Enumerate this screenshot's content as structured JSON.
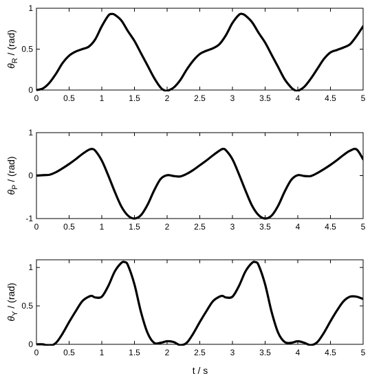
{
  "figure": {
    "xlabel": "t / s"
  },
  "chart_data": [
    {
      "type": "line",
      "ylabel_symbol": "θ",
      "ylabel_subscript": "R",
      "ylabel_unit": " / (rad)",
      "xlim": [
        0,
        5
      ],
      "ylim": [
        0,
        1
      ],
      "xticks": [
        "0",
        "0.5",
        "1",
        "1.5",
        "2",
        "2.5",
        "3",
        "3.5",
        "4",
        "4.5",
        "5"
      ],
      "yticks": [
        "0",
        "0.5",
        "1"
      ],
      "grid": false,
      "series": [
        {
          "color": "#000000",
          "x": [
            0,
            0.1,
            0.2,
            0.3,
            0.4,
            0.5,
            0.6,
            0.7,
            0.8,
            0.9,
            1.0,
            1.1,
            1.15,
            1.2,
            1.3,
            1.4,
            1.5,
            1.6,
            1.7,
            1.8,
            1.9,
            1.95,
            2.0,
            2.1,
            2.2,
            2.3,
            2.4,
            2.5,
            2.6,
            2.7,
            2.8,
            2.9,
            3.0,
            3.1,
            3.15,
            3.2,
            3.3,
            3.4,
            3.5,
            3.6,
            3.7,
            3.8,
            3.9,
            3.95,
            4.0,
            4.1,
            4.2,
            4.3,
            4.4,
            4.5,
            4.6,
            4.7,
            4.8,
            4.9,
            5.0
          ],
          "y": [
            0.0,
            0.02,
            0.09,
            0.2,
            0.33,
            0.42,
            0.47,
            0.5,
            0.53,
            0.62,
            0.78,
            0.91,
            0.93,
            0.92,
            0.85,
            0.72,
            0.6,
            0.45,
            0.3,
            0.15,
            0.03,
            0.0,
            -0.01,
            0.03,
            0.12,
            0.25,
            0.36,
            0.44,
            0.48,
            0.51,
            0.56,
            0.67,
            0.82,
            0.92,
            0.93,
            0.91,
            0.83,
            0.7,
            0.58,
            0.43,
            0.28,
            0.13,
            0.03,
            0.0,
            -0.01,
            0.04,
            0.14,
            0.26,
            0.38,
            0.46,
            0.49,
            0.52,
            0.56,
            0.66,
            0.78
          ]
        }
      ]
    },
    {
      "type": "line",
      "ylabel_symbol": "θ",
      "ylabel_subscript": "P",
      "ylabel_unit": " / (rad)",
      "xlim": [
        0,
        5
      ],
      "ylim": [
        -1,
        1
      ],
      "xticks": [
        "0",
        "0.5",
        "1",
        "1.5",
        "2",
        "2.5",
        "3",
        "3.5",
        "4",
        "4.5",
        "5"
      ],
      "yticks": [
        "-1",
        "0",
        "1"
      ],
      "grid": false,
      "series": [
        {
          "color": "#000000",
          "x": [
            0,
            0.1,
            0.2,
            0.3,
            0.4,
            0.5,
            0.6,
            0.7,
            0.8,
            0.85,
            0.9,
            1.0,
            1.1,
            1.2,
            1.3,
            1.4,
            1.5,
            1.6,
            1.7,
            1.8,
            1.9,
            2.0,
            2.1,
            2.2,
            2.3,
            2.4,
            2.5,
            2.6,
            2.7,
            2.8,
            2.85,
            2.9,
            3.0,
            3.1,
            3.2,
            3.3,
            3.4,
            3.5,
            3.6,
            3.7,
            3.8,
            3.9,
            4.0,
            4.1,
            4.2,
            4.3,
            4.4,
            4.5,
            4.6,
            4.7,
            4.8,
            4.9,
            5.0
          ],
          "y": [
            0.0,
            0.01,
            0.02,
            0.08,
            0.17,
            0.27,
            0.38,
            0.5,
            0.6,
            0.62,
            0.58,
            0.35,
            0.0,
            -0.38,
            -0.72,
            -0.93,
            -1.0,
            -0.92,
            -0.68,
            -0.35,
            -0.08,
            0.01,
            -0.01,
            -0.02,
            0.04,
            0.13,
            0.24,
            0.35,
            0.47,
            0.58,
            0.62,
            0.59,
            0.38,
            0.03,
            -0.35,
            -0.7,
            -0.92,
            -1.0,
            -0.93,
            -0.7,
            -0.37,
            -0.1,
            0.01,
            -0.01,
            -0.01,
            0.06,
            0.15,
            0.25,
            0.36,
            0.48,
            0.58,
            0.61,
            0.38
          ]
        }
      ]
    },
    {
      "type": "line",
      "ylabel_symbol": "θ",
      "ylabel_subscript": "Y",
      "ylabel_unit": " / (rad)",
      "xlim": [
        0,
        5
      ],
      "ylim": [
        0,
        1.1
      ],
      "xticks": [
        "0",
        "0.5",
        "1",
        "1.5",
        "2",
        "2.5",
        "3",
        "3.5",
        "4",
        "4.5",
        "5"
      ],
      "yticks": [
        "0",
        "0.5",
        "1"
      ],
      "xlabel": "t / s",
      "grid": false,
      "series": [
        {
          "color": "#000000",
          "x": [
            0,
            0.1,
            0.2,
            0.3,
            0.4,
            0.5,
            0.6,
            0.7,
            0.8,
            0.85,
            0.9,
            1.0,
            1.1,
            1.2,
            1.3,
            1.35,
            1.4,
            1.5,
            1.6,
            1.7,
            1.8,
            1.9,
            2.0,
            2.1,
            2.2,
            2.3,
            2.4,
            2.5,
            2.6,
            2.7,
            2.8,
            2.85,
            2.9,
            3.0,
            3.1,
            3.2,
            3.3,
            3.35,
            3.4,
            3.5,
            3.6,
            3.7,
            3.8,
            3.9,
            4.0,
            4.1,
            4.2,
            4.3,
            4.4,
            4.5,
            4.6,
            4.7,
            4.8,
            4.9,
            5.0
          ],
          "y": [
            0.0,
            0.0,
            -0.02,
            0.02,
            0.14,
            0.29,
            0.43,
            0.56,
            0.62,
            0.63,
            0.61,
            0.62,
            0.76,
            0.95,
            1.06,
            1.07,
            1.03,
            0.78,
            0.42,
            0.15,
            0.02,
            0.02,
            0.04,
            0.03,
            -0.01,
            0.02,
            0.14,
            0.29,
            0.43,
            0.56,
            0.62,
            0.63,
            0.61,
            0.62,
            0.76,
            0.95,
            1.06,
            1.07,
            1.03,
            0.78,
            0.42,
            0.15,
            0.03,
            0.02,
            0.04,
            0.02,
            -0.01,
            0.03,
            0.15,
            0.3,
            0.44,
            0.56,
            0.62,
            0.62,
            0.59
          ]
        }
      ]
    }
  ]
}
